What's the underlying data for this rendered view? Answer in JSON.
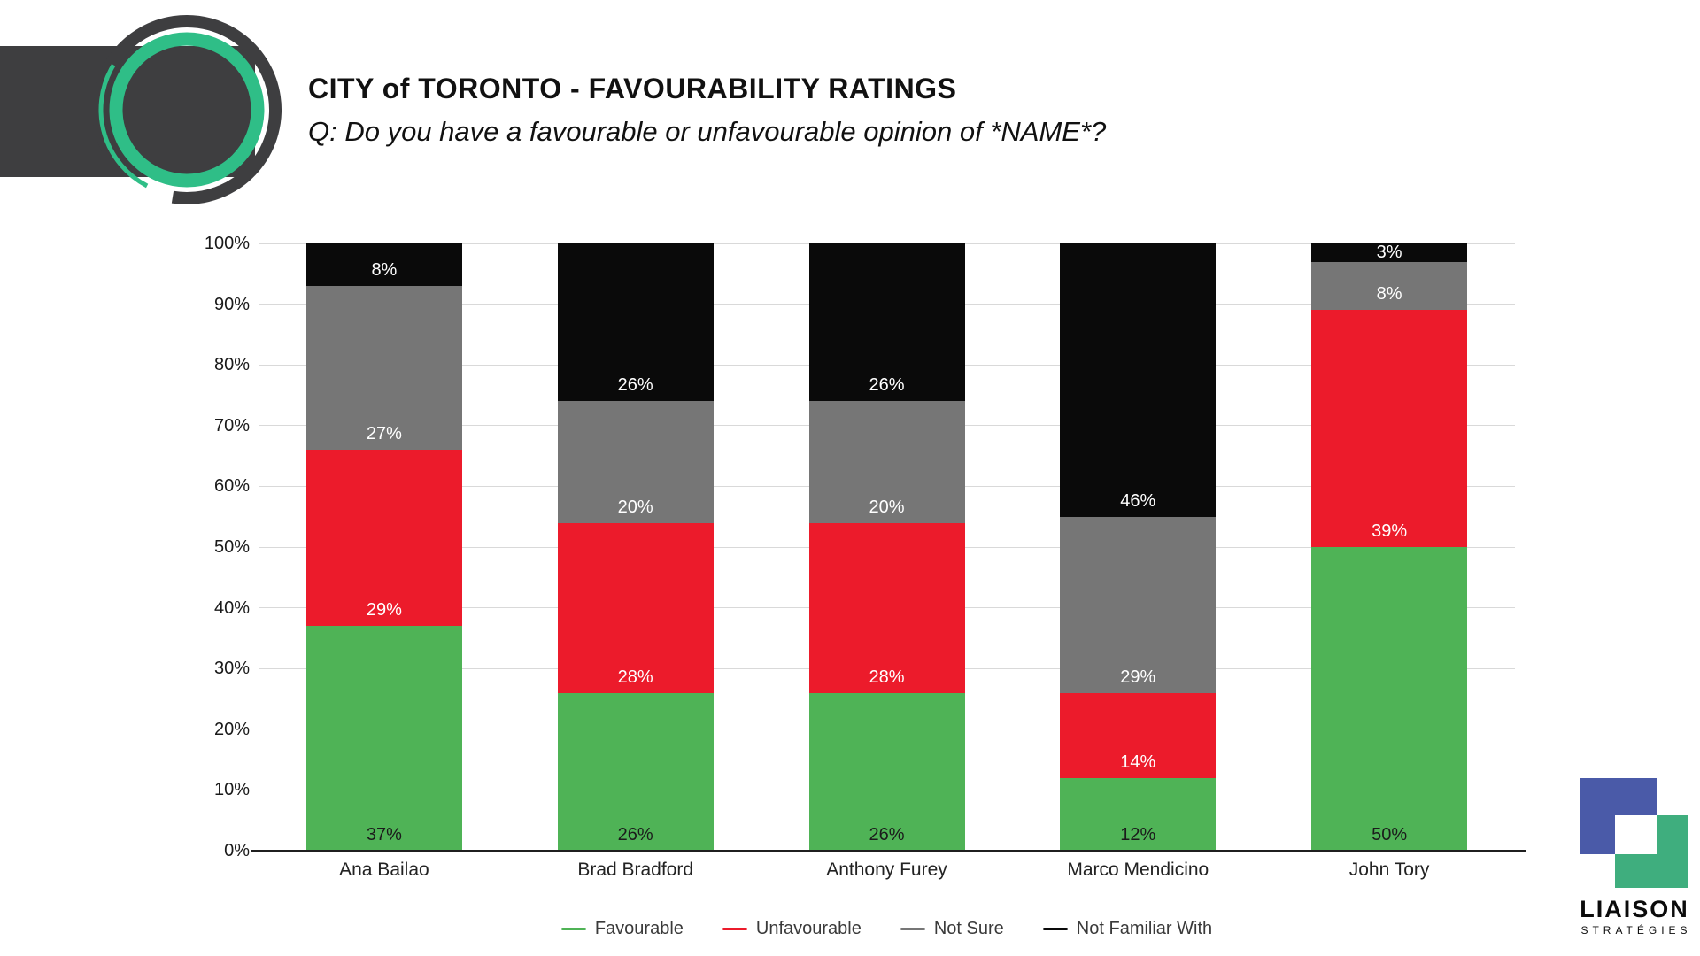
{
  "header": {
    "title": "CITY of TORONTO - FAVOURABILITY RATINGS",
    "subtitle": "Q: Do you have a favourable or unfavourable opinion of *NAME*?"
  },
  "chart_data": {
    "type": "bar",
    "stacked": true,
    "title": "CITY of TORONTO - FAVOURABILITY RATINGS",
    "categories": [
      "Ana Bailao",
      "Brad Bradford",
      "Anthony Furey",
      "Marco Mendicino",
      "John Tory"
    ],
    "series": [
      {
        "name": "Favourable",
        "color": "#4FB356",
        "label_color": "#1b1b1b",
        "values": [
          37,
          26,
          26,
          12,
          50
        ]
      },
      {
        "name": "Unfavourable",
        "color": "#EC1B2B",
        "label_color": "#ffffff",
        "values": [
          29,
          28,
          28,
          14,
          39
        ]
      },
      {
        "name": "Not Sure",
        "color": "#767676",
        "label_color": "#ffffff",
        "values": [
          27,
          20,
          20,
          29,
          8
        ]
      },
      {
        "name": "Not Familiar With",
        "color": "#0a0a0a",
        "label_color": "#ffffff",
        "values": [
          8,
          26,
          26,
          46,
          3
        ]
      }
    ],
    "y_axis": {
      "min": 0,
      "max": 100,
      "step": 10,
      "tick_suffix": "%"
    },
    "value_suffix": "%",
    "grid": true,
    "legend_position": "bottom"
  },
  "branding": {
    "line1": "LIAISON",
    "line2": "STRATÉGIES"
  },
  "colors": {
    "band": "#3E3E40",
    "logo_green": "#2FBE87",
    "logo_dark": "#3E3E40",
    "gridline": "#d9d9d9",
    "baseline": "#1f1f1f"
  }
}
